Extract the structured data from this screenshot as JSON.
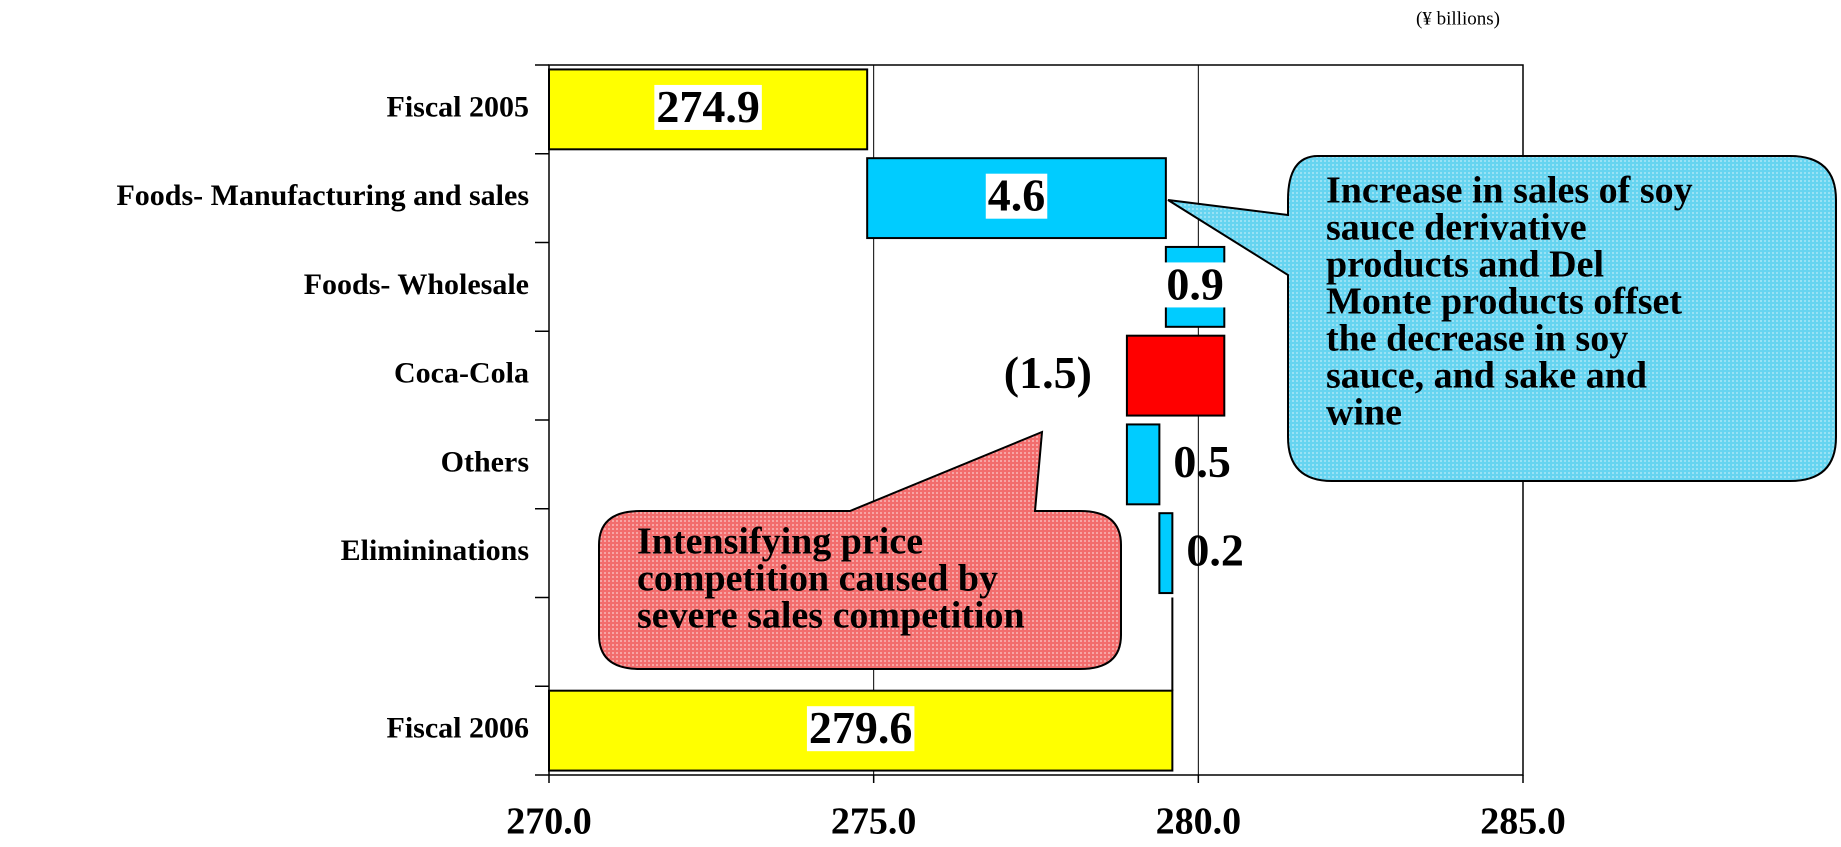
{
  "chart_data": {
    "type": "waterfall",
    "unit_label": "(¥ billions)",
    "categories": [
      "Fiscal 2005",
      "Foods- Manufacturing and sales",
      "Foods- Wholesale",
      "Coca-Cola",
      "Others",
      "Elimininations",
      null,
      "Fiscal 2006"
    ],
    "values": [
      274.9,
      4.6,
      0.9,
      -1.5,
      0.5,
      0.2,
      null,
      279.6
    ],
    "value_labels": [
      "274.9",
      "4.6",
      "0.9",
      "(1.5)",
      "0.5",
      "0.2",
      null,
      "279.6"
    ],
    "colors": [
      "#ffff00",
      "#00ccff",
      "#00ccff",
      "#ff0000",
      "#00ccff",
      "#00ccff",
      null,
      "#ffff00"
    ],
    "xlim": [
      270,
      285
    ],
    "xticks": [
      {
        "value": 270,
        "label": "270.0"
      },
      {
        "value": 275,
        "label": "275.0"
      },
      {
        "value": 280,
        "label": "280.0"
      },
      {
        "value": 285,
        "label": "285.0"
      }
    ],
    "grid": true,
    "annotations": [
      {
        "lines": [
          "Increase in sales of soy",
          "sauce derivative",
          "products and Del",
          "Monte products offset",
          "the decrease in soy",
          "sauce, and sake and",
          "wine"
        ]
      },
      {
        "lines": [
          "Intensifying price",
          "competition caused by",
          "severe sales competition"
        ]
      }
    ]
  }
}
